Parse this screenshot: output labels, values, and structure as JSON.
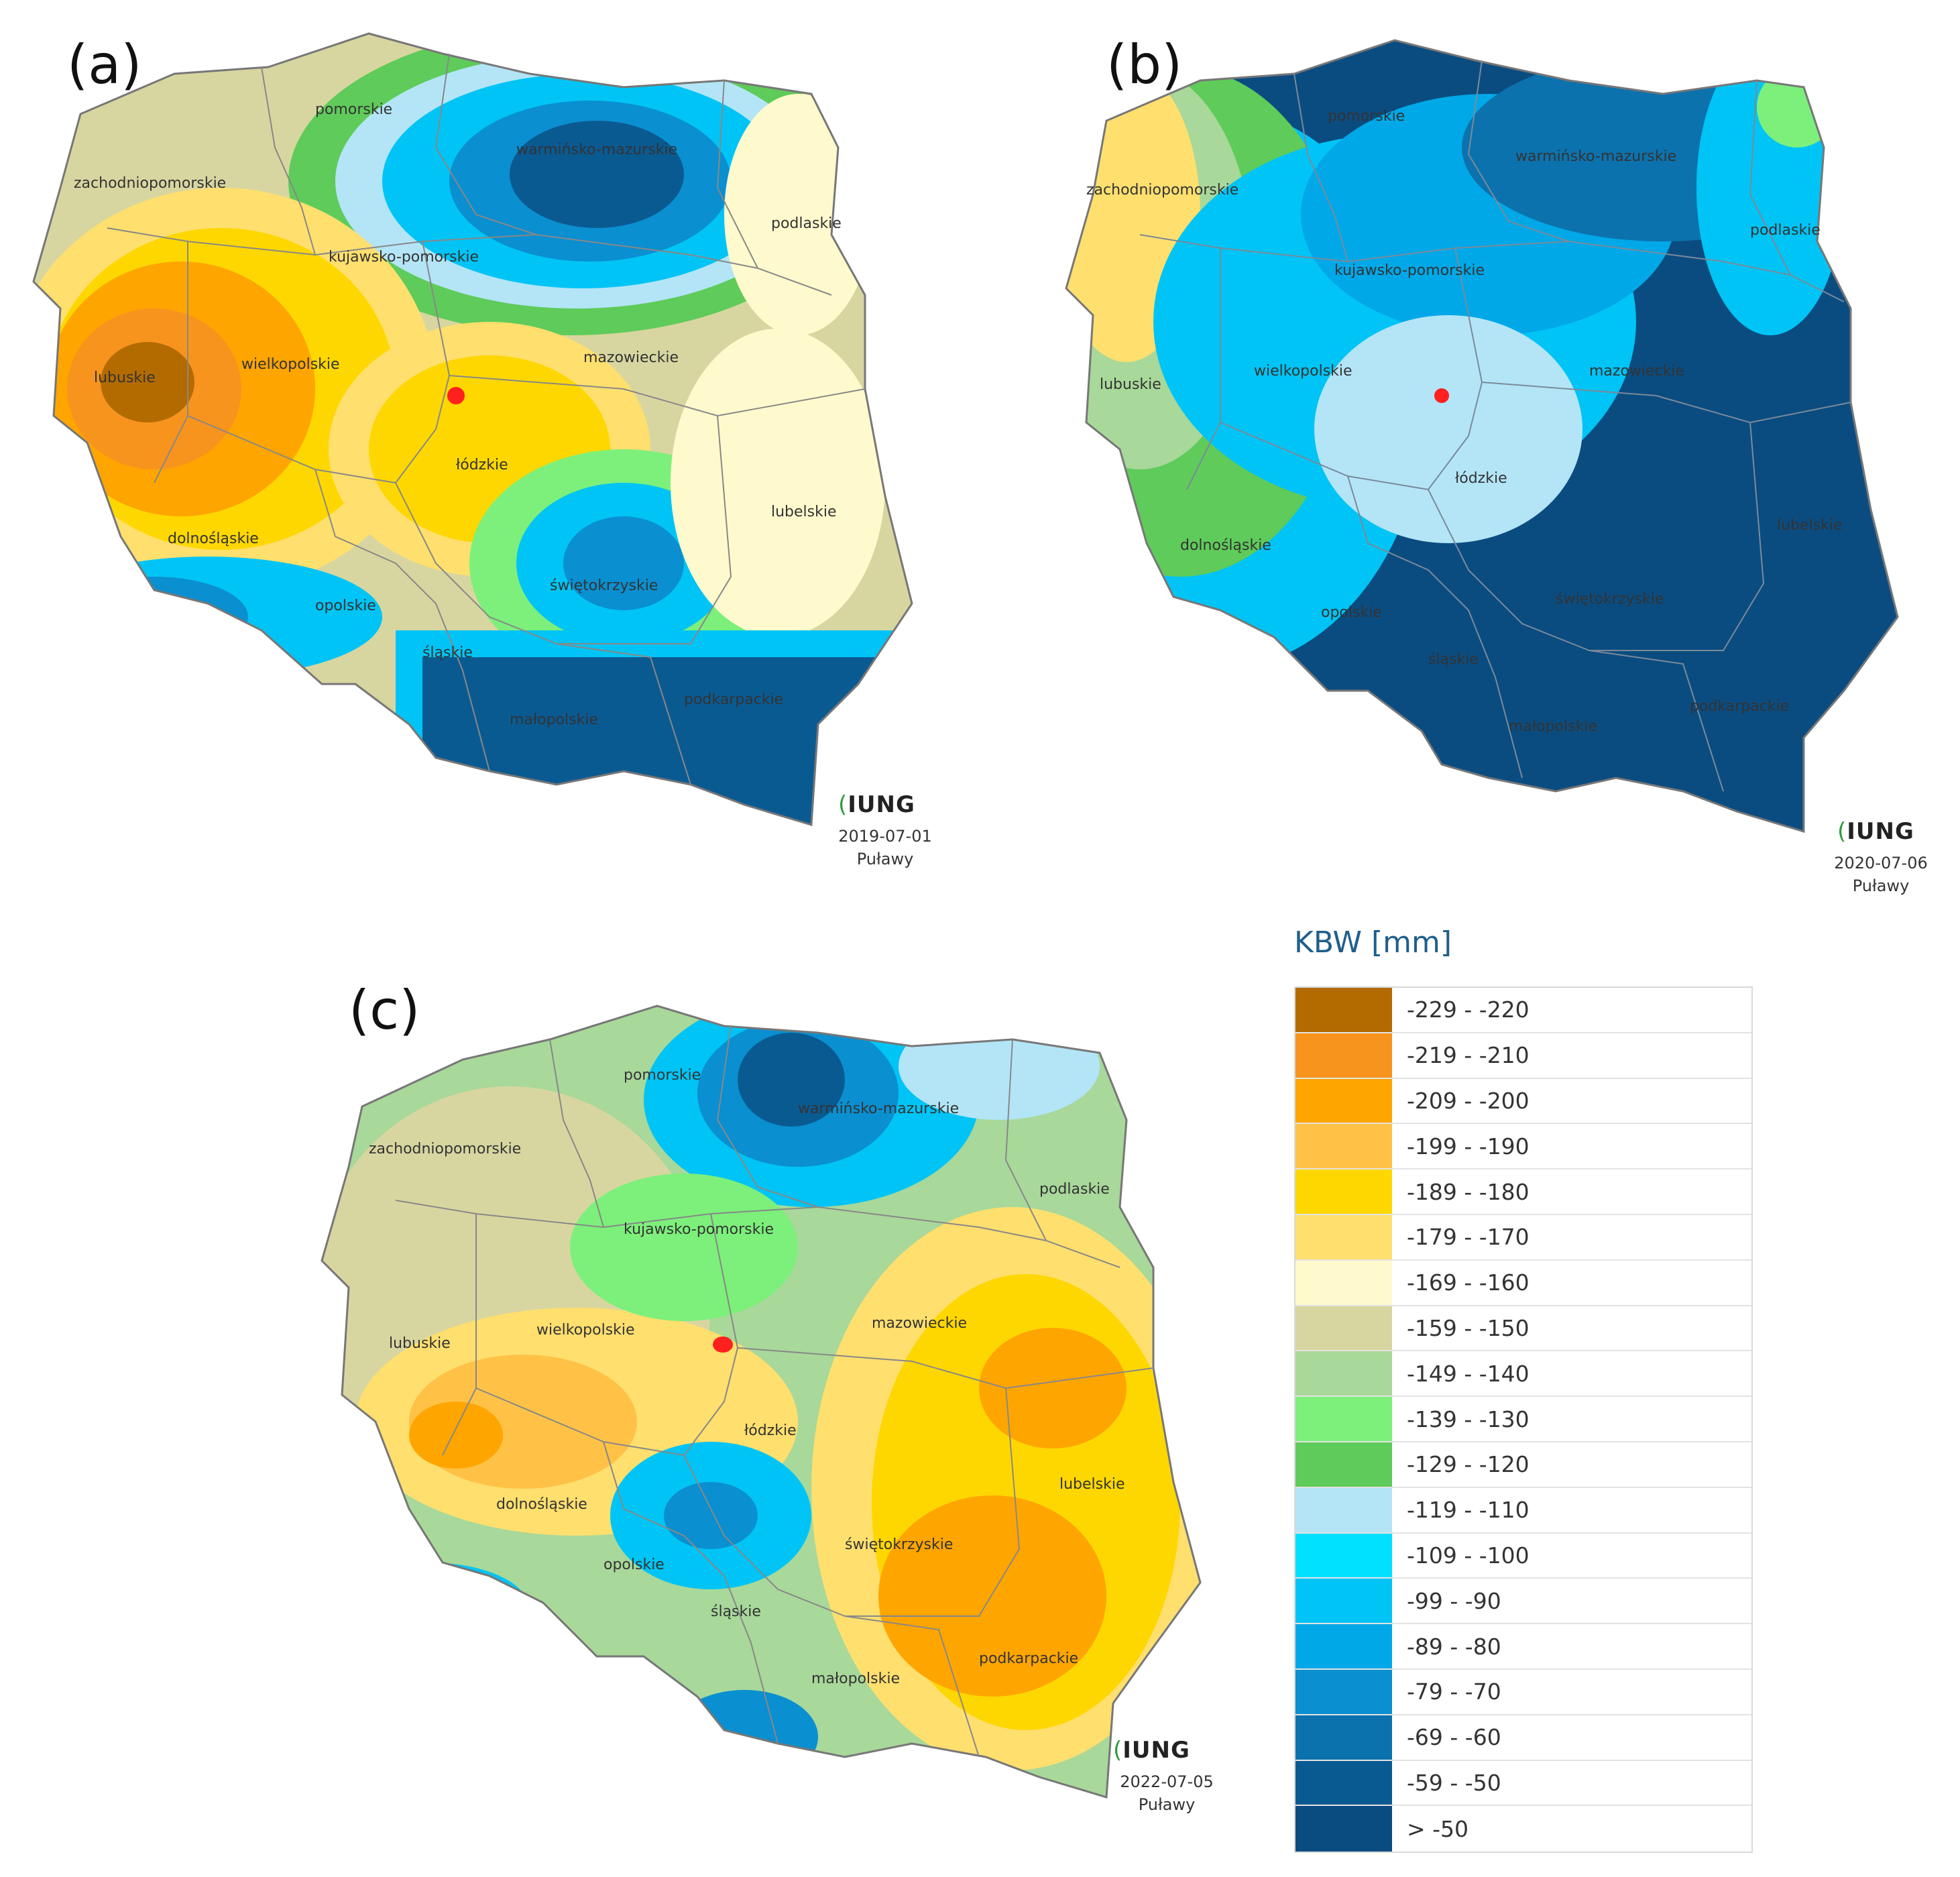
{
  "panels": [
    {
      "letter": "(a)",
      "date": "2019-07-01",
      "place": "Puławy",
      "logo": "IUNG",
      "regions": [
        "pomorskie",
        "warmińsko-mazurskie",
        "zachodniopomorskie",
        "podlaskie",
        "kujawsko-pomorskie",
        "lubuskie",
        "wielkopolskie",
        "mazowieckie",
        "łódzkie",
        "lubelskie",
        "dolnośląskie",
        "świętokrzyskie",
        "opolskie",
        "śląskie",
        "podkarpackie",
        "małopolskie"
      ]
    },
    {
      "letter": "(b)",
      "date": "2020-07-06",
      "place": "Puławy",
      "logo": "IUNG",
      "regions": [
        "pomorskie",
        "warmińsko-mazurskie",
        "zachodniopomorskie",
        "podlaskie",
        "kujawsko-pomorskie",
        "lubuskie",
        "wielkopolskie",
        "mazowieckie",
        "łódzkie",
        "lubelskie",
        "dolnośląskie",
        "świętokrzyskie",
        "opolskie",
        "śląskie",
        "podkarpackie",
        "małopolskie"
      ]
    },
    {
      "letter": "(c)",
      "date": "2022-07-05",
      "place": "Puławy",
      "logo": "IUNG",
      "regions": [
        "pomorskie",
        "warmińsko-mazurskie",
        "zachodniopomorskie",
        "podlaskie",
        "kujawsko-pomorskie",
        "lubuskie",
        "wielkopolskie",
        "mazowieckie",
        "łódzkie",
        "lubelskie",
        "dolnośląskie",
        "świętokrzyskie",
        "opolskie",
        "śląskie",
        "podkarpackie",
        "małopolskie"
      ]
    }
  ],
  "legend": {
    "title": "KBW [mm]",
    "items": [
      {
        "label": "-229 - -220",
        "color": "#b36b00"
      },
      {
        "label": "-219 - -210",
        "color": "#f7941d"
      },
      {
        "label": "-209 - -200",
        "color": "#ffa500"
      },
      {
        "label": "-199 - -190",
        "color": "#ffc246"
      },
      {
        "label": "-189 - -180",
        "color": "#ffd700"
      },
      {
        "label": "-179 - -170",
        "color": "#ffdf6e"
      },
      {
        "label": "-169 - -160",
        "color": "#fffacd"
      },
      {
        "label": "-159 - -150",
        "color": "#d8d6a0"
      },
      {
        "label": "-149 - -140",
        "color": "#a8d89a"
      },
      {
        "label": "-139 - -130",
        "color": "#7cf07a"
      },
      {
        "label": "-129 - -120",
        "color": "#5fcb5a"
      },
      {
        "label": "-119 - -110",
        "color": "#b3e5f7"
      },
      {
        "label": "-109 - -100",
        "color": "#00e0ff"
      },
      {
        "label": "-99 - -90",
        "color": "#00c4f5"
      },
      {
        "label": "-89 - -80",
        "color": "#00a8e8"
      },
      {
        "label": "-79 - -70",
        "color": "#0a8fd0"
      },
      {
        "label": "-69 - -60",
        "color": "#0c72ad"
      },
      {
        "label": "-59 - -50",
        "color": "#0a5a92"
      },
      {
        "label": "> -50",
        "color": "#0b4c80"
      }
    ]
  }
}
